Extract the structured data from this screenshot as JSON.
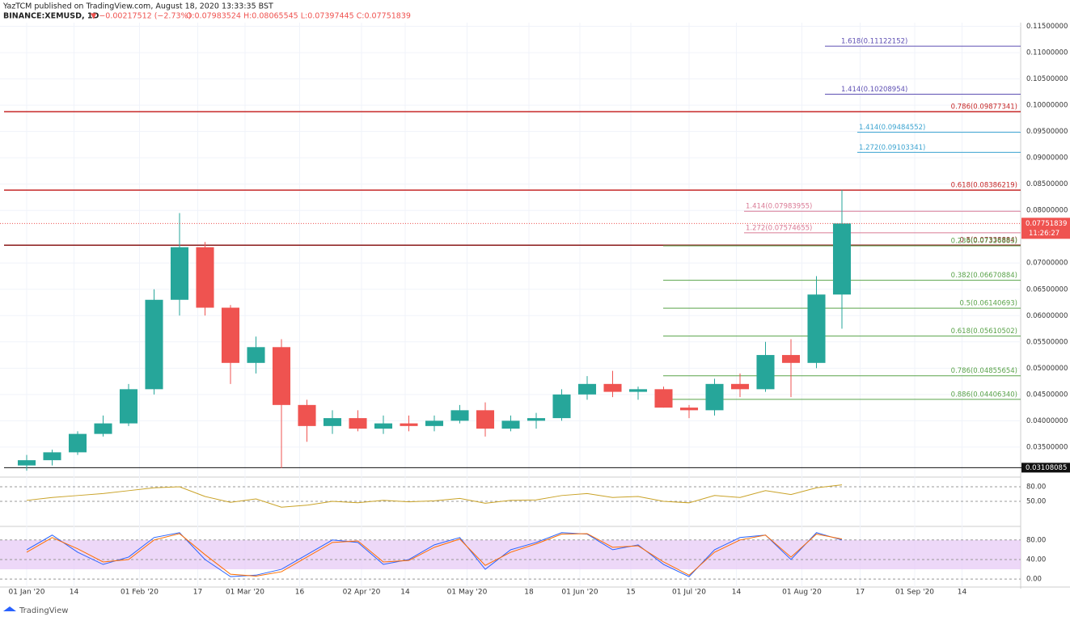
{
  "header": {
    "publisher": "YazTCM published on TradingView.com, August 18, 2020 13:33:35 BST",
    "symbol": "BINANCE:XEMUSD, 1D",
    "change": "▼ −0.00217512 (−2.73%)",
    "ohlc": "O:0.07983524 H:0.08065545 L:0.07397445 C:0.07751839",
    "logo": "TradingView"
  },
  "chart_data": [
    {
      "type": "candlestick",
      "up_color": "#26a69a",
      "down_color": "#ef5350",
      "x": [
        "2020-01-01",
        "2020-01-08",
        "2020-01-15",
        "2020-01-22",
        "2020-01-29",
        "2020-02-05",
        "2020-02-12",
        "2020-02-19",
        "2020-02-26",
        "2020-03-04",
        "2020-03-11",
        "2020-03-18",
        "2020-03-25",
        "2020-04-01",
        "2020-04-08",
        "2020-04-15",
        "2020-04-22",
        "2020-04-29",
        "2020-05-06",
        "2020-05-13",
        "2020-05-20",
        "2020-05-27",
        "2020-06-03",
        "2020-06-10",
        "2020-06-17",
        "2020-06-24",
        "2020-07-01",
        "2020-07-08",
        "2020-07-15",
        "2020-07-22",
        "2020-07-29",
        "2020-08-05",
        "2020-08-12"
      ],
      "open": [
        0.0315,
        0.0325,
        0.034,
        0.0375,
        0.0395,
        0.046,
        0.063,
        0.073,
        0.0615,
        0.051,
        0.054,
        0.043,
        0.039,
        0.0405,
        0.0385,
        0.0395,
        0.039,
        0.04,
        0.042,
        0.0385,
        0.04,
        0.0405,
        0.045,
        0.047,
        0.0455,
        0.046,
        0.0425,
        0.042,
        0.047,
        0.046,
        0.0525,
        0.051,
        0.064
      ],
      "high": [
        0.0335,
        0.0345,
        0.038,
        0.041,
        0.047,
        0.065,
        0.0795,
        0.074,
        0.062,
        0.056,
        0.0555,
        0.044,
        0.042,
        0.042,
        0.041,
        0.041,
        0.041,
        0.043,
        0.0435,
        0.041,
        0.0415,
        0.046,
        0.0485,
        0.0495,
        0.0465,
        0.0465,
        0.043,
        0.048,
        0.049,
        0.055,
        0.0555,
        0.0675,
        0.0839
      ],
      "low": [
        0.0305,
        0.0315,
        0.0335,
        0.037,
        0.039,
        0.045,
        0.06,
        0.06,
        0.047,
        0.049,
        0.031,
        0.036,
        0.0375,
        0.038,
        0.0375,
        0.038,
        0.038,
        0.0395,
        0.037,
        0.038,
        0.0385,
        0.04,
        0.044,
        0.0445,
        0.044,
        0.0425,
        0.0405,
        0.041,
        0.0445,
        0.0455,
        0.0445,
        0.05,
        0.0575
      ],
      "close": [
        0.0325,
        0.034,
        0.0375,
        0.0395,
        0.046,
        0.063,
        0.073,
        0.0615,
        0.051,
        0.054,
        0.043,
        0.039,
        0.0405,
        0.0385,
        0.0395,
        0.039,
        0.04,
        0.042,
        0.0385,
        0.04,
        0.0405,
        0.045,
        0.047,
        0.0455,
        0.046,
        0.0425,
        0.042,
        0.047,
        0.046,
        0.0525,
        0.051,
        0.064,
        0.07751839
      ],
      "last_price": {
        "value": 0.07751839,
        "label": "0.07751839"
      },
      "countdown": "11:26:27",
      "ylim": [
        0.0296,
        0.1157
      ],
      "yticks": [
        {
          "value": 0.115,
          "label": "0.11500000"
        },
        {
          "value": 0.11,
          "label": "0.11000000"
        },
        {
          "value": 0.105,
          "label": "0.10500000"
        },
        {
          "value": 0.1,
          "label": "0.10000000"
        },
        {
          "value": 0.095,
          "label": "0.09500000"
        },
        {
          "value": 0.09,
          "label": "0.09000000"
        },
        {
          "value": 0.085,
          "label": "0.08500000"
        },
        {
          "value": 0.08,
          "label": "0.08000000"
        },
        {
          "value": 0.07,
          "label": "0.07000000"
        },
        {
          "value": 0.065,
          "label": "0.06500000"
        },
        {
          "value": 0.06,
          "label": "0.06000000"
        },
        {
          "value": 0.055,
          "label": "0.05500000"
        },
        {
          "value": 0.05,
          "label": "0.05000000"
        },
        {
          "value": 0.045,
          "label": "0.04500000"
        },
        {
          "value": 0.04,
          "label": "0.04000000"
        },
        {
          "value": 0.035,
          "label": "0.03500000"
        }
      ],
      "xticks": [
        {
          "value": "2020-01-01",
          "label": "01 Jan '20"
        },
        {
          "value": "2020-01-14",
          "label": "14"
        },
        {
          "value": "2020-02-01",
          "label": "01 Feb '20"
        },
        {
          "value": "2020-02-17",
          "label": "17"
        },
        {
          "value": "2020-03-01",
          "label": "01 Mar '20"
        },
        {
          "value": "2020-03-16",
          "label": "16"
        },
        {
          "value": "2020-04-02",
          "label": "02 Apr '20"
        },
        {
          "value": "2020-04-14",
          "label": "14"
        },
        {
          "value": "2020-05-01",
          "label": "01 May '20"
        },
        {
          "value": "2020-05-18",
          "label": "18"
        },
        {
          "value": "2020-06-01",
          "label": "01 Jun '20"
        },
        {
          "value": "2020-06-15",
          "label": "15"
        },
        {
          "value": "2020-07-01",
          "label": "01 Jul '20"
        },
        {
          "value": "2020-07-14",
          "label": "14"
        },
        {
          "value": "2020-08-01",
          "label": "01 Aug '20"
        },
        {
          "value": "2020-08-17",
          "label": "17"
        },
        {
          "value": "2020-09-01",
          "label": "01 Sep '20"
        },
        {
          "value": "2020-09-14",
          "label": "14"
        }
      ],
      "levels": [
        {
          "value": 0.11122152,
          "label": "1.618(0.11122152)",
          "color": "#5e4fb3",
          "group": "purple"
        },
        {
          "value": 0.10208954,
          "label": "1.414(0.10208954)",
          "color": "#5e4fb3",
          "group": "purple"
        },
        {
          "value": 0.09877341,
          "label": "0.786(0.09877341)",
          "color": "#c62828",
          "group": "red"
        },
        {
          "value": 0.09484552,
          "label": "1.414(0.09484552)",
          "color": "#3aa3d0",
          "group": "blue"
        },
        {
          "value": 0.09103341,
          "label": "1.272(0.09103341)",
          "color": "#3aa3d0",
          "group": "blue"
        },
        {
          "value": 0.08386219,
          "label": "0.618(0.08386219)",
          "color": "#c62828",
          "group": "red"
        },
        {
          "value": 0.07983955,
          "label": "1.414(0.07983955)",
          "color": "#d97a95",
          "group": "pink"
        },
        {
          "value": 0.07574655,
          "label": "1.272(0.07574655)",
          "color": "#d97a95",
          "group": "pink"
        },
        {
          "value": 0.07338884,
          "label": "0.5(0.07338884)",
          "color": "#8b1a1a",
          "group": "red"
        },
        {
          "value": 0.07326883,
          "label": "0.236(0.07326883)",
          "color": "#5aa34a",
          "group": "green"
        },
        {
          "value": 0.06670884,
          "label": "0.382(0.06670884)",
          "color": "#5aa34a",
          "group": "green"
        },
        {
          "value": 0.06140693,
          "label": "0.5(0.06140693)",
          "color": "#5aa34a",
          "group": "green"
        },
        {
          "value": 0.05610502,
          "label": "0.618(0.05610502)",
          "color": "#5aa34a",
          "group": "green"
        },
        {
          "value": 0.04855654,
          "label": "0.786(0.04855654)",
          "color": "#5aa34a",
          "group": "green"
        },
        {
          "value": 0.0440634,
          "label": "0.886(0.04406340)",
          "color": "#5aa34a",
          "group": "green"
        },
        {
          "value": 0.03108085,
          "label": "0.03108085",
          "color": "#111111",
          "group": "black"
        }
      ]
    },
    {
      "type": "line",
      "x": [
        "2020-01-01",
        "2020-01-08",
        "2020-01-15",
        "2020-01-22",
        "2020-01-29",
        "2020-02-05",
        "2020-02-12",
        "2020-02-19",
        "2020-02-26",
        "2020-03-04",
        "2020-03-11",
        "2020-03-18",
        "2020-03-25",
        "2020-04-01",
        "2020-04-08",
        "2020-04-15",
        "2020-04-22",
        "2020-04-29",
        "2020-05-06",
        "2020-05-13",
        "2020-05-20",
        "2020-05-27",
        "2020-06-03",
        "2020-06-10",
        "2020-06-17",
        "2020-06-24",
        "2020-07-01",
        "2020-07-08",
        "2020-07-15",
        "2020-07-22",
        "2020-07-29",
        "2020-08-05",
        "2020-08-12"
      ],
      "series": [
        {
          "color": "#c9a227",
          "values": [
            52,
            58,
            62,
            66,
            72,
            78,
            80,
            60,
            48,
            55,
            38,
            42,
            50,
            47,
            52,
            49,
            51,
            56,
            46,
            52,
            53,
            62,
            66,
            58,
            60,
            50,
            47,
            62,
            58,
            72,
            64,
            78,
            84
          ]
        }
      ],
      "ylim": [
        0,
        96.7
      ],
      "yticks": [
        {
          "value": 80,
          "label": "80.00"
        },
        {
          "value": 50,
          "label": "50.00"
        }
      ]
    },
    {
      "type": "line",
      "x": [
        "2020-01-01",
        "2020-01-08",
        "2020-01-15",
        "2020-01-22",
        "2020-01-29",
        "2020-02-05",
        "2020-02-12",
        "2020-02-19",
        "2020-02-26",
        "2020-03-04",
        "2020-03-11",
        "2020-03-18",
        "2020-03-25",
        "2020-04-01",
        "2020-04-08",
        "2020-04-15",
        "2020-04-22",
        "2020-04-29",
        "2020-05-06",
        "2020-05-13",
        "2020-05-20",
        "2020-05-27",
        "2020-06-03",
        "2020-06-10",
        "2020-06-17",
        "2020-06-24",
        "2020-07-01",
        "2020-07-08",
        "2020-07-15",
        "2020-07-22",
        "2020-07-29",
        "2020-08-05",
        "2020-08-12"
      ],
      "series": [
        {
          "color": "#2962ff",
          "values": [
            60,
            90,
            55,
            30,
            45,
            85,
            95,
            40,
            5,
            8,
            20,
            50,
            80,
            75,
            30,
            40,
            70,
            85,
            20,
            60,
            75,
            95,
            92,
            60,
            70,
            30,
            5,
            60,
            85,
            90,
            40,
            95,
            80
          ]
        },
        {
          "color": "#ff6d00",
          "values": [
            55,
            85,
            62,
            35,
            40,
            80,
            93,
            50,
            10,
            6,
            15,
            45,
            75,
            78,
            35,
            38,
            65,
            82,
            28,
            55,
            72,
            92,
            93,
            65,
            68,
            35,
            8,
            55,
            80,
            90,
            45,
            92,
            82
          ]
        }
      ],
      "band": [
        20,
        80
      ],
      "ylim": [
        -13,
        104.5
      ],
      "yticks": [
        {
          "value": 80,
          "label": "80.00"
        },
        {
          "value": 40,
          "label": "40.00"
        },
        {
          "value": 0,
          "label": "0.00"
        }
      ]
    }
  ]
}
